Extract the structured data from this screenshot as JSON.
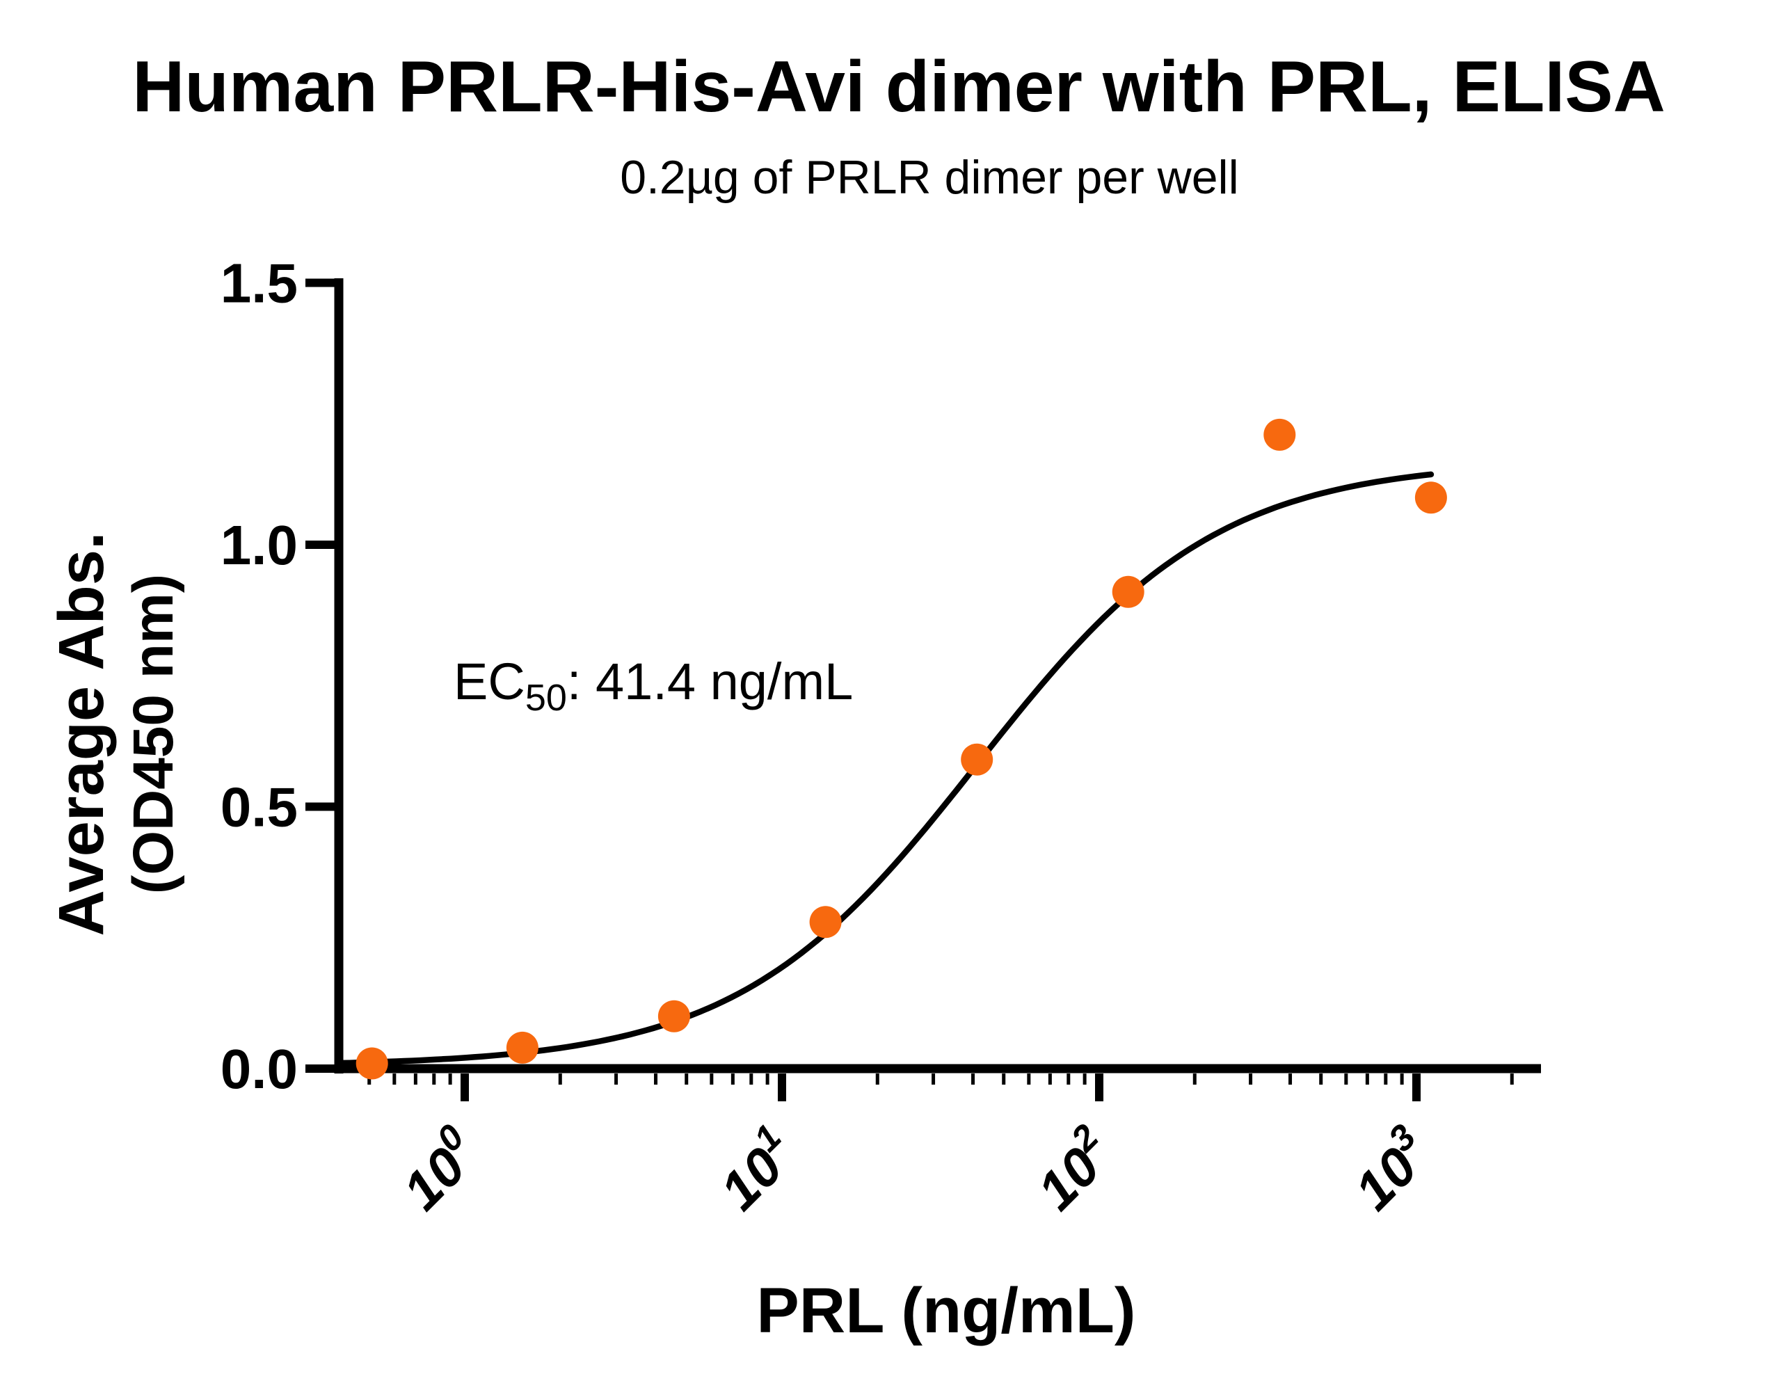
{
  "page": {
    "background": "#FFFFFF"
  },
  "chart_data": {
    "type": "scatter",
    "title": "Human PRLR-His-Avi dimer with PRL, ELISA",
    "subtitle": "0.2µg of PRLR dimer per well",
    "xlabel": "PRL (ng/mL)",
    "ylabel_line1": "Average Abs.",
    "ylabel_line2": "(OD450 nm)",
    "x_scale": "log10",
    "xlim": [
      0.4,
      2466
    ],
    "ylim": [
      0.0,
      1.5
    ],
    "grid": "off",
    "legend": "none",
    "y_ticks": [
      {
        "value": 0.0,
        "label": "0.0"
      },
      {
        "value": 0.5,
        "label": "0.5"
      },
      {
        "value": 1.0,
        "label": "1.0"
      },
      {
        "value": 1.5,
        "label": "1.5"
      }
    ],
    "x_ticks": [
      {
        "value": 1,
        "base": "10",
        "exponent": "0"
      },
      {
        "value": 10,
        "base": "10",
        "exponent": "1"
      },
      {
        "value": 100,
        "base": "10",
        "exponent": "2"
      },
      {
        "value": 1000,
        "base": "10",
        "exponent": "3"
      }
    ],
    "x_minor_ticks": [
      0.5,
      0.6,
      0.7,
      0.8,
      0.9,
      2,
      3,
      4,
      5,
      6,
      7,
      8,
      9,
      20,
      30,
      40,
      50,
      60,
      70,
      80,
      90,
      200,
      300,
      400,
      500,
      600,
      700,
      800,
      900,
      2000
    ],
    "points": [
      {
        "x": 0.51,
        "y": 0.01
      },
      {
        "x": 1.52,
        "y": 0.04
      },
      {
        "x": 4.57,
        "y": 0.1
      },
      {
        "x": 13.72,
        "y": 0.28
      },
      {
        "x": 41.15,
        "y": 0.59
      },
      {
        "x": 123.46,
        "y": 0.91
      },
      {
        "x": 370.37,
        "y": 1.21
      },
      {
        "x": 1111.11,
        "y": 1.09
      }
    ],
    "curve_fit": {
      "model": "4PL",
      "bottom": 0.005,
      "top": 1.16,
      "ec50": 41.4,
      "hill": 1.15,
      "x_range": [
        0.41,
        1111.11
      ]
    },
    "annotation": {
      "prefix": "EC",
      "subscript": "50",
      "suffix": ": 41.4 ng/mL"
    },
    "colors": {
      "points": "#F7690F",
      "curve": "#000000",
      "axis": "#000000",
      "text": "#000000"
    },
    "marker": {
      "shape": "circle",
      "radius_px": 23
    }
  }
}
